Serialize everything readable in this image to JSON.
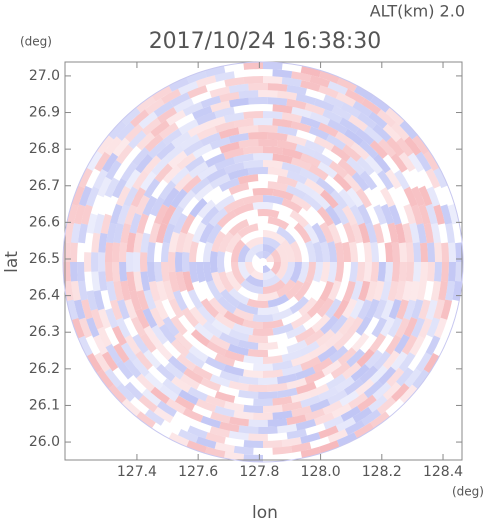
{
  "chart_data": {
    "type": "radar-ppi",
    "title": "2017/10/24 16:38:30",
    "subtitle": "ALT(km) 2.0",
    "xlabel": "lon",
    "ylabel": "lat",
    "xunit": "(deg)",
    "yunit": "(deg)",
    "xlim": [
      127.165,
      128.462
    ],
    "ylim": [
      25.951,
      27.038
    ],
    "xticks": [
      127.4,
      127.6,
      127.8,
      {
        "value": 128,
        "label": "128.0"
      },
      128.2,
      128.4
    ],
    "yticks": [
      {
        "value": 26,
        "label": "26.0"
      },
      26.1,
      26.2,
      26.3,
      26.4,
      26.5,
      26.6,
      26.7,
      26.8,
      26.9,
      {
        "value": 27,
        "label": "27.0"
      }
    ]
  }
}
